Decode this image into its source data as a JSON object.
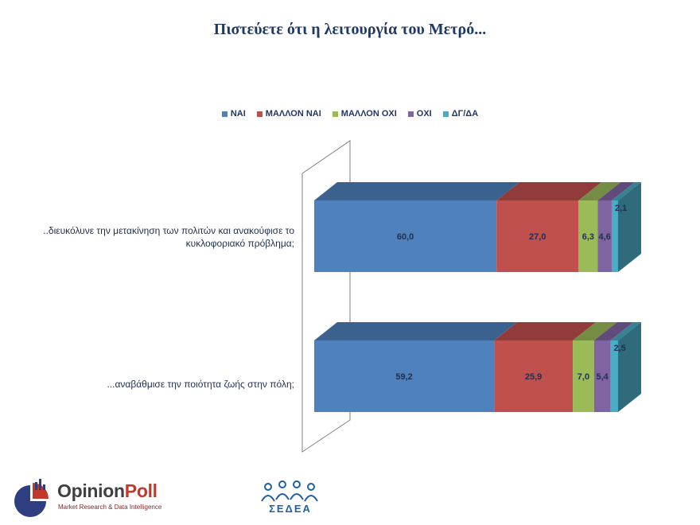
{
  "title": "Πιστεύετε ότι η λειτουργία του Μετρό...",
  "legend": [
    {
      "label": "ΝΑΙ",
      "color": "#4f81bd"
    },
    {
      "label": "ΜΑΛΛΟΝ ΝΑΙ",
      "color": "#c0504d"
    },
    {
      "label": "ΜΑΛΛΟΝ ΟΧΙ",
      "color": "#9bbb59"
    },
    {
      "label": "ΟΧΙ",
      "color": "#8064a2"
    },
    {
      "label": "ΔΓ/ΔΑ",
      "color": "#4bacc6"
    }
  ],
  "chart_data": {
    "type": "bar",
    "orientation": "horizontal",
    "stacked": true,
    "style": "3d",
    "categories": [
      "..διευκόλυνε την μετακίνηση των πολιτών και ανακούφισε το κυκλοφοριακό πρόβλημα;",
      "...αναβάθμισε την ποιότητα ζωής στην πόλη;"
    ],
    "category_lines": [
      [
        "..διευκόλυνε την μετακίνηση των πολιτών και ανακούφισε το",
        "κυκλοφοριακό πρόβλημα;"
      ],
      [
        "...αναβάθμισε την ποιότητα ζωής στην πόλη;"
      ]
    ],
    "series": [
      {
        "name": "ΝΑΙ",
        "values": [
          60.0,
          59.2
        ],
        "labels": [
          "60,0",
          "59,2"
        ]
      },
      {
        "name": "ΜΑΛΛΟΝ ΝΑΙ",
        "values": [
          27.0,
          25.9
        ],
        "labels": [
          "27,0",
          "25,9"
        ]
      },
      {
        "name": "ΜΑΛΛΟΝ ΟΧΙ",
        "values": [
          6.3,
          7.0
        ],
        "labels": [
          "6,3",
          "7,0"
        ]
      },
      {
        "name": "ΟΧΙ",
        "values": [
          4.6,
          5.4
        ],
        "labels": [
          "4,6",
          "5,4"
        ]
      },
      {
        "name": "ΔΓ/ΔΑ",
        "values": [
          2.1,
          2.5
        ],
        "labels": [
          "2,1",
          "2,5"
        ]
      }
    ],
    "xlim": [
      0,
      100
    ],
    "legend_position": "top",
    "grid": false
  },
  "logos": {
    "opinionpoll": {
      "name_part1": "Opinion",
      "name_part2": "Poll",
      "tagline": "Market Research & Data Intelligence"
    },
    "sedea": {
      "text": "ΣΕΔΕΑ"
    }
  }
}
